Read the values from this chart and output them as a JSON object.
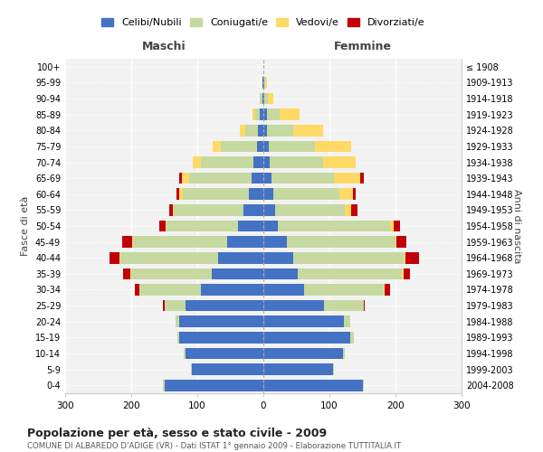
{
  "age_groups": [
    "0-4",
    "5-9",
    "10-14",
    "15-19",
    "20-24",
    "25-29",
    "30-34",
    "35-39",
    "40-44",
    "45-49",
    "50-54",
    "55-59",
    "60-64",
    "65-69",
    "70-74",
    "75-79",
    "80-84",
    "85-89",
    "90-94",
    "95-99",
    "100+"
  ],
  "birth_years": [
    "2004-2008",
    "1999-2003",
    "1994-1998",
    "1989-1993",
    "1984-1988",
    "1979-1983",
    "1974-1978",
    "1969-1973",
    "1964-1968",
    "1959-1963",
    "1954-1958",
    "1949-1953",
    "1944-1948",
    "1939-1943",
    "1934-1938",
    "1929-1933",
    "1924-1928",
    "1919-1923",
    "1914-1918",
    "1909-1913",
    "≤ 1908"
  ],
  "maschi": {
    "celibi": [
      150,
      108,
      118,
      128,
      128,
      118,
      95,
      78,
      68,
      55,
      38,
      30,
      22,
      18,
      15,
      10,
      8,
      5,
      2,
      1,
      0
    ],
    "coniugati": [
      2,
      2,
      2,
      2,
      5,
      32,
      92,
      122,
      148,
      142,
      108,
      105,
      100,
      95,
      80,
      55,
      20,
      8,
      3,
      1,
      0
    ],
    "vedovi": [
      0,
      0,
      0,
      0,
      0,
      0,
      0,
      2,
      2,
      2,
      2,
      2,
      5,
      10,
      12,
      12,
      8,
      3,
      1,
      0,
      0
    ],
    "divorziati": [
      0,
      0,
      0,
      0,
      0,
      2,
      8,
      10,
      15,
      15,
      10,
      5,
      5,
      5,
      0,
      0,
      0,
      0,
      0,
      0,
      0
    ]
  },
  "femmine": {
    "nubili": [
      150,
      105,
      120,
      132,
      122,
      92,
      62,
      52,
      45,
      35,
      22,
      18,
      15,
      12,
      10,
      8,
      5,
      5,
      2,
      1,
      0
    ],
    "coniugate": [
      2,
      2,
      3,
      5,
      10,
      60,
      120,
      158,
      168,
      165,
      170,
      105,
      100,
      95,
      80,
      70,
      40,
      20,
      5,
      2,
      0
    ],
    "vedove": [
      0,
      0,
      0,
      0,
      0,
      0,
      2,
      2,
      2,
      2,
      5,
      10,
      20,
      40,
      50,
      55,
      45,
      30,
      8,
      2,
      0
    ],
    "divorziate": [
      0,
      0,
      0,
      0,
      0,
      2,
      8,
      10,
      20,
      15,
      10,
      10,
      5,
      5,
      0,
      0,
      0,
      0,
      0,
      0,
      0
    ]
  },
  "color_celibi": "#4472C4",
  "color_coniugati": "#C5D9A0",
  "color_vedovi": "#FFD966",
  "color_divorziati": "#C0000B",
  "title1": "Popolazione per età, sesso e stato civile - 2009",
  "title2": "COMUNE DI ALBAREDO D'ADIGE (VR) - Dati ISTAT 1° gennaio 2009 - Elaborazione TUTTITALIA.IT",
  "xlabel_left": "Maschi",
  "xlabel_right": "Femmine",
  "ylabel_left": "Fasce di età",
  "ylabel_right": "Anni di nascita",
  "xlim": 300,
  "legend_labels": [
    "Celibi/Nubili",
    "Coniugati/e",
    "Vedovi/e",
    "Divorziati/e"
  ],
  "bg_color": "#FFFFFF",
  "plot_bg_color": "#F2F2F2"
}
